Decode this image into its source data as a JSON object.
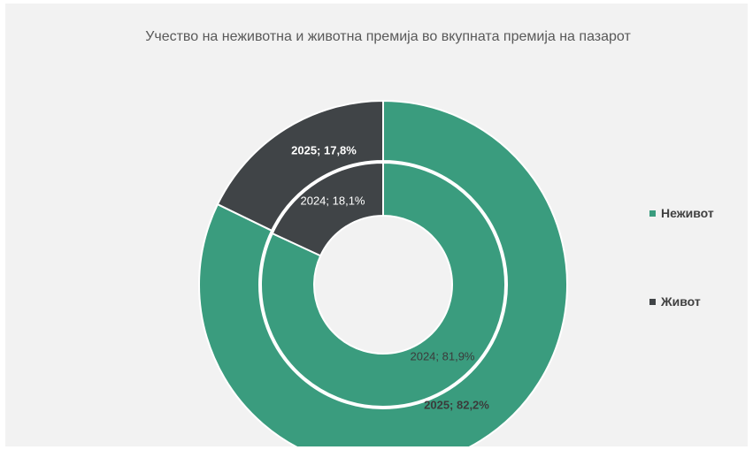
{
  "colors": {
    "nonlife": "#3a9c7e",
    "life": "#404447",
    "separator": "#ffffff"
  },
  "chart_data": {
    "type": "pie",
    "title": "Учество на неживотна и животна премија во вкупната премија на пазарот",
    "categories": [
      "Неживот",
      "Живот"
    ],
    "legend_position": "right",
    "rings": [
      {
        "name": "2024",
        "ring": "inner",
        "values": [
          81.9,
          18.1
        ],
        "labels": [
          "2024; 81,9%",
          "2024; 18,1%"
        ]
      },
      {
        "name": "2025",
        "ring": "outer",
        "values": [
          82.2,
          17.8
        ],
        "labels": [
          "2025; 82,2%",
          "2025; 17,8%"
        ]
      }
    ]
  }
}
